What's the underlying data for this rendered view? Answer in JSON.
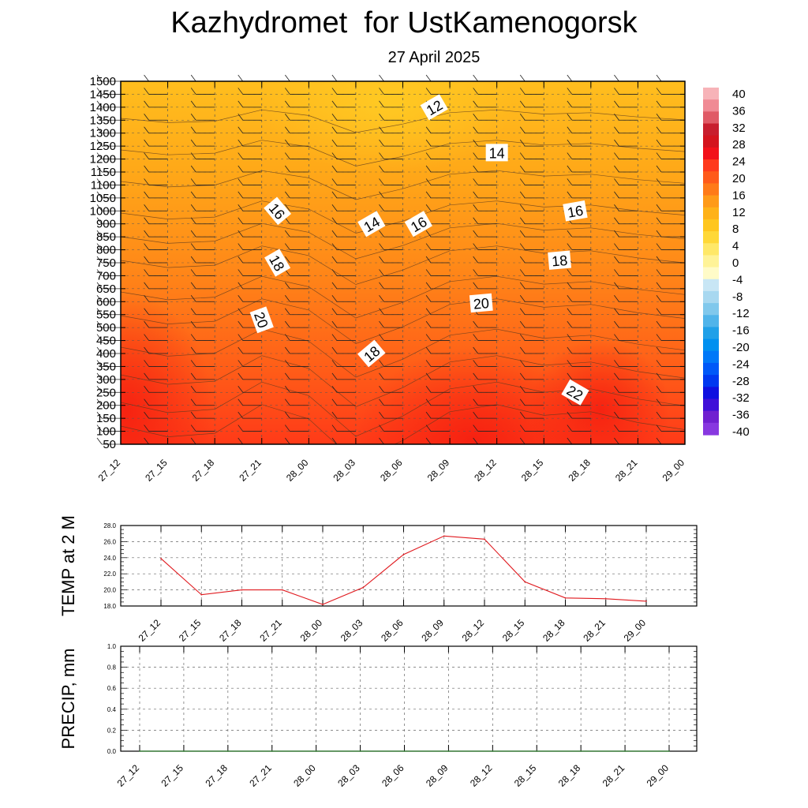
{
  "title": "Kazhydromet  for UstKamenogorsk",
  "subtitle": "27 April 2025",
  "chart_data": [
    {
      "type": "heatmap",
      "description_kind": "vertical cross-section, filled contours with wind barbs",
      "x_ticks": [
        "27_12",
        "27_15",
        "27_18",
        "27_21",
        "28_00",
        "28_03",
        "28_06",
        "28_09",
        "28_12",
        "28_15",
        "28_18",
        "28_21",
        "29_00"
      ],
      "y_ticks": [
        50,
        100,
        150,
        200,
        250,
        300,
        350,
        400,
        450,
        500,
        550,
        600,
        650,
        700,
        750,
        800,
        850,
        900,
        1000,
        1050,
        1100,
        1150,
        1200,
        1250,
        1300,
        1350,
        1400,
        1450,
        1500
      ],
      "colorbar": {
        "labels": [
          40,
          36,
          32,
          28,
          24,
          20,
          16,
          12,
          8,
          4,
          0,
          -4,
          -8,
          -12,
          -16,
          -20,
          -24,
          -28,
          -32,
          -36,
          -40
        ],
        "colors_top_to_bottom": [
          "#f7b3b8",
          "#f08a94",
          "#e05a66",
          "#c81e2e",
          "#d4141e",
          "#f2111a",
          "#ff3a1c",
          "#ff5a1a",
          "#ff7a18",
          "#ff9a18",
          "#ffb218",
          "#ffc61e",
          "#ffd838",
          "#ffe868",
          "#fff398",
          "#fffbc8",
          "#c8e6f5",
          "#a8d8f0",
          "#80c8ec",
          "#50b4ea",
          "#20a0e8",
          "#0090f0",
          "#0078f8",
          "#0058f8",
          "#0038f0",
          "#1010e0",
          "#4010d8",
          "#7020d0",
          "#8838e0"
        ]
      },
      "contour_labels": [
        {
          "text": "12",
          "x": "28_08",
          "y": 1400
        },
        {
          "text": "14",
          "x": "28_12",
          "y": 1225
        },
        {
          "text": "16",
          "x": "27_22",
          "y": 1000
        },
        {
          "text": "14",
          "x": "28_04",
          "y": 900
        },
        {
          "text": "16",
          "x": "28_07",
          "y": 900
        },
        {
          "text": "16",
          "x": "28_17",
          "y": 1000
        },
        {
          "text": "18",
          "x": "27_22",
          "y": 750
        },
        {
          "text": "18",
          "x": "28_16",
          "y": 760
        },
        {
          "text": "20",
          "x": "27_21",
          "y": 530
        },
        {
          "text": "20",
          "x": "28_11",
          "y": 595
        },
        {
          "text": "18",
          "x": "28_04",
          "y": 400
        },
        {
          "text": "22",
          "x": "28_17",
          "y": 250
        }
      ]
    },
    {
      "type": "line",
      "ylabel": "TEMP at 2 M",
      "x": [
        "27_12",
        "27_15",
        "27_18",
        "27_21",
        "28_00",
        "28_03",
        "28_06",
        "28_09",
        "28_12",
        "28_15",
        "28_18",
        "28_21",
        "29_00"
      ],
      "values": [
        23.9,
        19.4,
        20.0,
        20.0,
        18.2,
        20.3,
        24.4,
        26.7,
        26.3,
        21.0,
        19.0,
        18.9,
        18.6
      ],
      "ylim": [
        18.0,
        28.0
      ],
      "y_ticks": [
        "18.0",
        "20.0",
        "22.0",
        "24.0",
        "26.0",
        "28.0"
      ],
      "line_color": "#e0191e"
    },
    {
      "type": "line",
      "ylabel": "PRECIP, mm",
      "x": [
        "27_12",
        "27_15",
        "27_18",
        "27_21",
        "28_00",
        "28_03",
        "28_06",
        "28_09",
        "28_12",
        "28_15",
        "28_18",
        "28_21",
        "29_00"
      ],
      "values": [
        0,
        0,
        0,
        0,
        0,
        0,
        0,
        0,
        0,
        0,
        0,
        0,
        0
      ],
      "ylim": [
        0.0,
        1.0
      ],
      "y_ticks": [
        "0.0",
        "0.2",
        "0.4",
        "0.6",
        "0.8",
        "1.0"
      ],
      "line_color": "#2a7a2a"
    }
  ]
}
